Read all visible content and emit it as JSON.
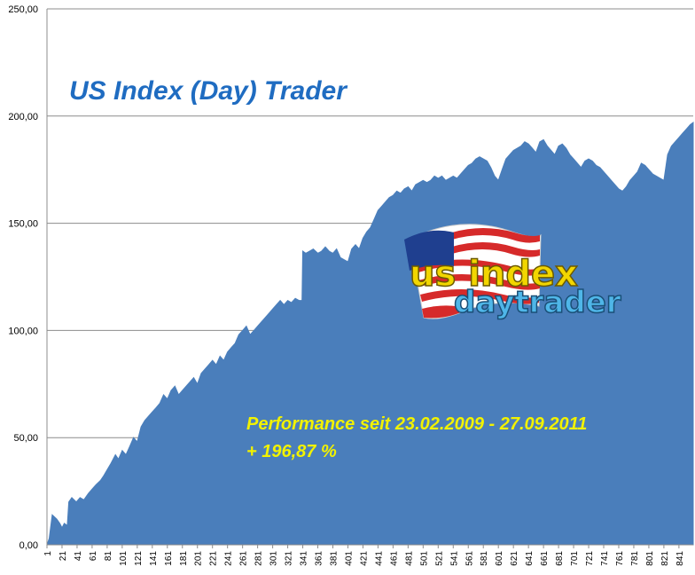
{
  "chart_data": {
    "type": "area",
    "title": "US Index (Day) Trader",
    "annotation_line1": "Performance  seit  23.02.2009 - 27.09.2011",
    "annotation_line2": "+ 196,87  %",
    "logo_text_top": "us index",
    "logo_text_bottom": "daytrader",
    "ylim": [
      0,
      250
    ],
    "xlim": [
      1,
      860
    ],
    "yticks": [
      "0,00",
      "50,00",
      "100,00",
      "150,00",
      "200,00",
      "250,00"
    ],
    "xticks": [
      "1",
      "21",
      "41",
      "61",
      "81",
      "101",
      "121",
      "141",
      "161",
      "181",
      "201",
      "221",
      "241",
      "261",
      "281",
      "301",
      "321",
      "341",
      "361",
      "381",
      "401",
      "421",
      "441",
      "461",
      "481",
      "501",
      "521",
      "541",
      "561",
      "581",
      "601",
      "621",
      "641",
      "661",
      "681",
      "701",
      "721",
      "741",
      "761",
      "781",
      "801",
      "821",
      "841"
    ],
    "grid": true,
    "series": [
      {
        "color": "#4a7ebb",
        "x": [
          1,
          4,
          8,
          14,
          18,
          21,
          24,
          28,
          30,
          34,
          40,
          45,
          50,
          56,
          61,
          66,
          72,
          76,
          81,
          86,
          92,
          96,
          101,
          106,
          111,
          116,
          121,
          126,
          131,
          136,
          141,
          146,
          151,
          156,
          161,
          166,
          171,
          176,
          181,
          186,
          191,
          196,
          201,
          206,
          211,
          216,
          221,
          226,
          231,
          236,
          241,
          246,
          251,
          256,
          261,
          266,
          271,
          276,
          281,
          286,
          291,
          296,
          301,
          306,
          311,
          316,
          321,
          326,
          331,
          336,
          340,
          341,
          345,
          350,
          355,
          361,
          366,
          371,
          376,
          381,
          386,
          391,
          396,
          401,
          406,
          411,
          416,
          421,
          426,
          431,
          436,
          441,
          446,
          451,
          456,
          461,
          466,
          471,
          476,
          481,
          486,
          491,
          496,
          501,
          506,
          511,
          516,
          521,
          526,
          531,
          536,
          541,
          546,
          551,
          556,
          561,
          566,
          571,
          576,
          581,
          586,
          591,
          596,
          601,
          606,
          611,
          616,
          621,
          626,
          631,
          636,
          641,
          646,
          651,
          656,
          661,
          666,
          671,
          676,
          681,
          686,
          691,
          696,
          701,
          706,
          711,
          716,
          721,
          726,
          731,
          736,
          741,
          746,
          751,
          756,
          761,
          766,
          771,
          776,
          781,
          786,
          791,
          796,
          801,
          806,
          811,
          816,
          821,
          826,
          831,
          836,
          841,
          846,
          851,
          856,
          860
        ],
        "values": [
          0,
          3,
          14,
          12,
          10,
          8,
          10,
          9,
          20,
          22,
          20,
          22,
          21,
          24,
          26,
          28,
          30,
          32,
          35,
          38,
          42,
          40,
          44,
          42,
          46,
          50,
          48,
          55,
          58,
          60,
          62,
          64,
          66,
          70,
          68,
          72,
          74,
          70,
          72,
          74,
          76,
          78,
          75,
          80,
          82,
          84,
          86,
          84,
          88,
          86,
          90,
          92,
          94,
          98,
          100,
          102,
          98,
          100,
          102,
          104,
          106,
          108,
          110,
          112,
          114,
          112,
          114,
          113,
          115,
          114,
          114,
          137,
          136,
          137,
          138,
          136,
          137,
          139,
          137,
          136,
          138,
          134,
          133,
          132,
          138,
          140,
          138,
          143,
          146,
          148,
          152,
          156,
          158,
          160,
          162,
          163,
          165,
          164,
          166,
          167,
          165,
          168,
          169,
          170,
          169,
          170,
          172,
          171,
          172,
          170,
          171,
          172,
          171,
          173,
          175,
          177,
          178,
          180,
          181,
          180,
          179,
          176,
          172,
          170,
          175,
          180,
          182,
          184,
          185,
          186,
          188,
          187,
          185,
          183,
          188,
          189,
          186,
          184,
          182,
          186,
          187,
          185,
          182,
          180,
          178,
          176,
          179,
          180,
          179,
          177,
          176,
          174,
          172,
          170,
          168,
          166,
          165,
          167,
          170,
          172,
          174,
          178,
          177,
          175,
          173,
          172,
          171,
          170,
          182,
          186,
          188,
          190,
          192,
          194,
          196,
          197
        ]
      }
    ]
  }
}
